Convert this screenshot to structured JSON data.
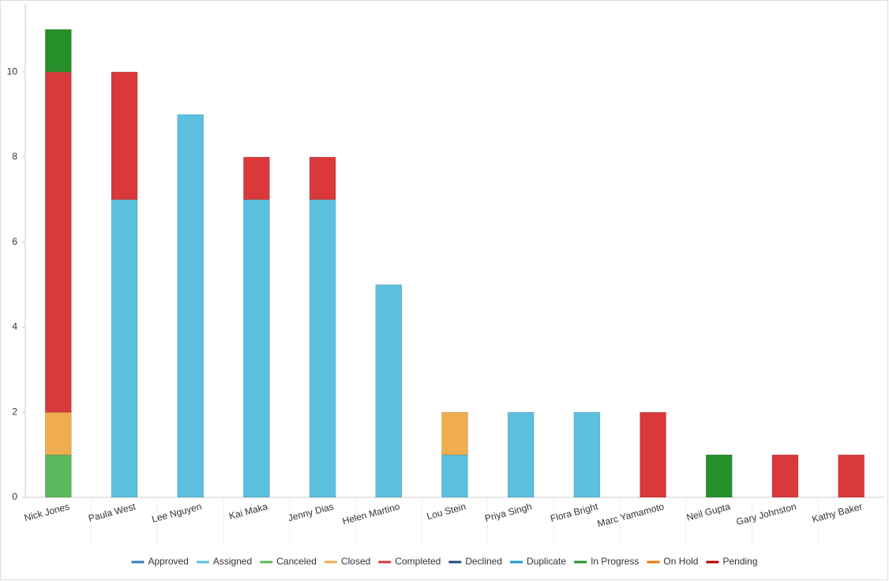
{
  "chart_data": {
    "type": "stacked-bar",
    "categories": [
      "Nick Jones",
      "Paula West",
      "Lee Nguyen",
      "Kai Maka",
      "Jenny Dias",
      "Helen Martino",
      "Lou Stein",
      "Priya Singh",
      "Flora Bright",
      "Marc Yamamoto",
      "Neil Gupta",
      "Gary Johnston",
      "Kathy Baker"
    ],
    "series": [
      {
        "name": "Approved",
        "color": "#2f7ebc",
        "values": [
          null,
          null,
          null,
          null,
          null,
          null,
          null,
          null,
          null,
          null,
          null,
          null,
          null
        ]
      },
      {
        "name": "Assigned",
        "color": "#5bc0de",
        "values": [
          null,
          7,
          9,
          7,
          7,
          5,
          1,
          2,
          2,
          null,
          null,
          null,
          null
        ]
      },
      {
        "name": "Canceled",
        "color": "#5cb85c",
        "values": [
          1,
          null,
          null,
          null,
          null,
          null,
          null,
          null,
          null,
          null,
          null,
          null,
          null
        ]
      },
      {
        "name": "Closed",
        "color": "#f0ad4e",
        "values": [
          1,
          null,
          null,
          null,
          null,
          null,
          1,
          null,
          null,
          null,
          null,
          null,
          null
        ]
      },
      {
        "name": "Completed",
        "color": "#d9393a",
        "values": [
          8,
          3,
          null,
          1,
          1,
          null,
          null,
          null,
          null,
          2,
          null,
          1,
          1
        ]
      },
      {
        "name": "Declined",
        "color": "#1f4e79",
        "values": [
          null,
          null,
          null,
          null,
          null,
          null,
          null,
          null,
          null,
          null,
          null,
          null,
          null
        ]
      },
      {
        "name": "Duplicate",
        "color": "#1a9bd7",
        "values": [
          null,
          null,
          null,
          null,
          null,
          null,
          null,
          null,
          null,
          null,
          null,
          null,
          null
        ]
      },
      {
        "name": "In Progress",
        "color": "#278f2a",
        "values": [
          1,
          null,
          null,
          null,
          null,
          null,
          null,
          null,
          null,
          null,
          1,
          null,
          null
        ]
      },
      {
        "name": "On Hold",
        "color": "#f07800",
        "values": [
          null,
          null,
          null,
          null,
          null,
          null,
          null,
          null,
          null,
          null,
          null,
          null,
          null
        ]
      },
      {
        "name": "Pending",
        "color": "#b00000",
        "values": [
          null,
          null,
          null,
          null,
          null,
          null,
          null,
          null,
          null,
          null,
          null,
          null,
          null
        ]
      }
    ],
    "ylim": [
      0,
      11.6
    ],
    "yticks": [
      0,
      2,
      4,
      6,
      8,
      10
    ],
    "legend": "bottom"
  }
}
